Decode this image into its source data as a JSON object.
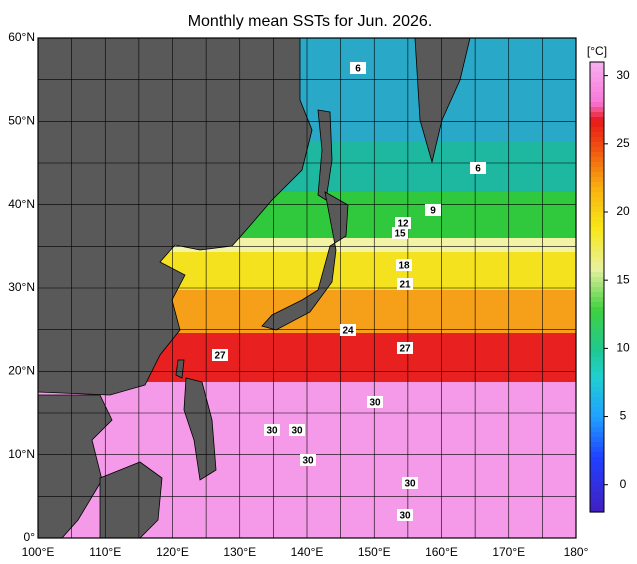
{
  "title": "Monthly mean SSTs for Jun. 2026.",
  "lon_ticks": [
    {
      "value": 100,
      "label": "100°E"
    },
    {
      "value": 110,
      "label": "110°E"
    },
    {
      "value": 120,
      "label": "120°E"
    },
    {
      "value": 130,
      "label": "130°E"
    },
    {
      "value": 140,
      "label": "140°E"
    },
    {
      "value": 150,
      "label": "150°E"
    },
    {
      "value": 160,
      "label": "160°E"
    },
    {
      "value": 170,
      "label": "170°E"
    },
    {
      "value": 180,
      "label": "180°"
    }
  ],
  "lat_ticks": [
    {
      "value": 0,
      "label": "0°"
    },
    {
      "value": 10,
      "label": "10°N"
    },
    {
      "value": 20,
      "label": "20°N"
    },
    {
      "value": 30,
      "label": "30°N"
    },
    {
      "value": 40,
      "label": "40°N"
    },
    {
      "value": 50,
      "label": "50°N"
    },
    {
      "value": 60,
      "label": "60°N"
    }
  ],
  "colorbar": {
    "unit": "[°C]",
    "range": [
      -2,
      31
    ],
    "ticks": [
      0,
      5,
      10,
      15,
      20,
      25,
      30
    ]
  },
  "contour_labels": [
    6,
    6,
    9,
    12,
    15,
    18,
    21,
    24,
    27,
    27,
    30,
    30,
    30,
    30,
    30,
    30
  ]
}
